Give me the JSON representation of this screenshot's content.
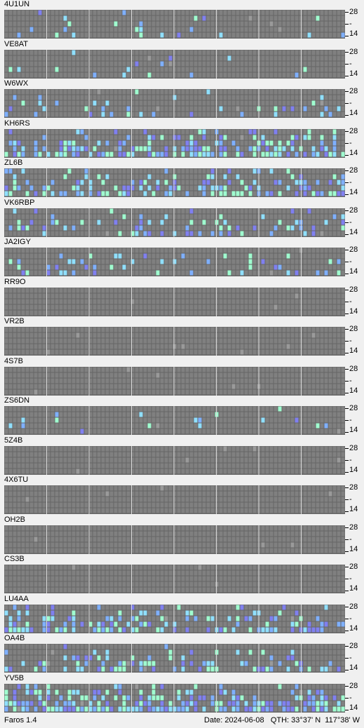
{
  "app": {
    "name": "Faros 1.4"
  },
  "status": {
    "date_label": "Date:",
    "date": "2024-06-08",
    "qth_label": "QTH:",
    "lat": "33°37' N",
    "lon": "117°38' W"
  },
  "axis": {
    "top": "28",
    "middle": "-",
    "bottom": "14"
  },
  "colors": {
    "grid_bg": "#666666",
    "empty_cell": "#808080",
    "gray_spot": "#9a9a9a",
    "weak": "#7fb0ff",
    "medium": "#90e0ff",
    "strong": "#a0ffd0",
    "purple": "#8080f0"
  },
  "beacons": [
    {
      "call": "4U1UN"
    },
    {
      "call": "VE8AT"
    },
    {
      "call": "W6WX"
    },
    {
      "call": "KH6RS"
    },
    {
      "call": "ZL6B"
    },
    {
      "call": "VK6RBP"
    },
    {
      "call": "JA2IGY"
    },
    {
      "call": "RR9O"
    },
    {
      "call": "VR2B"
    },
    {
      "call": "4S7B"
    },
    {
      "call": "ZS6DN"
    },
    {
      "call": "5Z4B"
    },
    {
      "call": "4X6TU"
    },
    {
      "call": "OH2B"
    },
    {
      "call": "CS3B"
    },
    {
      "call": "LU4AA"
    },
    {
      "call": "OA4B"
    },
    {
      "call": "YV5B"
    }
  ]
}
